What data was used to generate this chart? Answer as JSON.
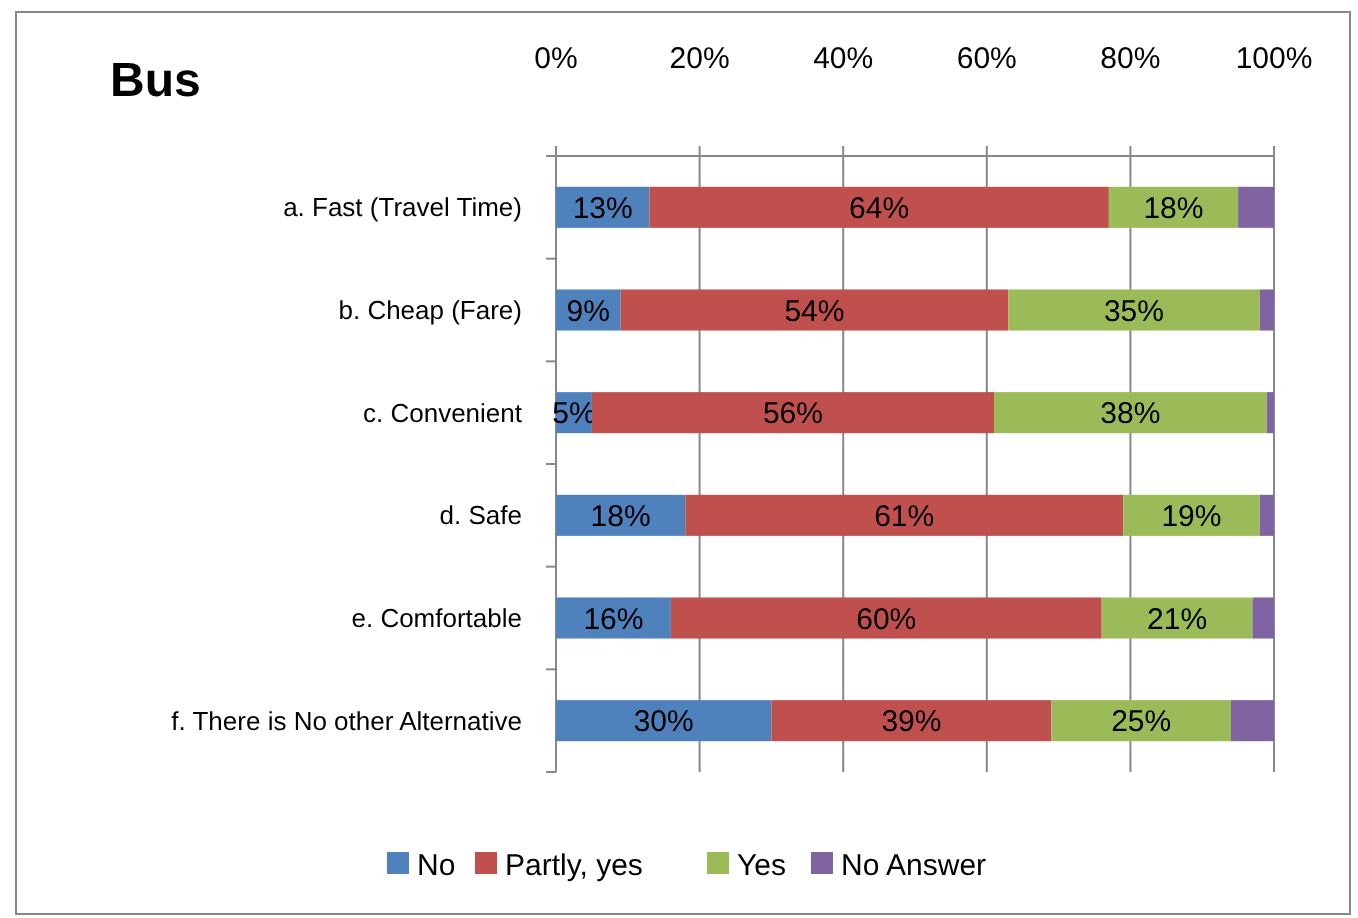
{
  "chart_data": {
    "type": "bar",
    "title": "Bus",
    "orientation": "horizontal",
    "stacked": true,
    "categories": [
      "a. Fast (Travel Time)",
      "b. Cheap (Fare)",
      "c. Convenient",
      "d. Safe",
      "e. Comfortable",
      "f. There is No other Alternative"
    ],
    "series": [
      {
        "name": "No",
        "color": "#4f81bd",
        "values": [
          13,
          9,
          5,
          18,
          16,
          30
        ],
        "value_labels": [
          "13%",
          "9%",
          "5%",
          "18%",
          "16%",
          "30%"
        ]
      },
      {
        "name": "Partly, yes",
        "color": "#c0504d",
        "values": [
          64,
          54,
          56,
          61,
          60,
          39
        ],
        "value_labels": [
          "64%",
          "54%",
          "56%",
          "61%",
          "60%",
          "39%"
        ]
      },
      {
        "name": "Yes",
        "color": "#9bbb59",
        "values": [
          18,
          35,
          38,
          19,
          21,
          25
        ],
        "value_labels": [
          "18%",
          "35%",
          "38%",
          "19%",
          "21%",
          "25%"
        ]
      },
      {
        "name": "No Answer",
        "color": "#8064a2",
        "values": [
          5,
          2,
          1,
          2,
          3,
          6
        ]
      }
    ],
    "xlim": [
      0,
      100
    ],
    "xticks": [
      {
        "value": 0,
        "label": "0%"
      },
      {
        "value": 20,
        "label": "20%"
      },
      {
        "value": 40,
        "label": "40%"
      },
      {
        "value": 60,
        "label": "60%"
      },
      {
        "value": 80,
        "label": "80%"
      },
      {
        "value": 100,
        "label": "100%"
      }
    ],
    "grid": "x",
    "legend": "bottom"
  }
}
